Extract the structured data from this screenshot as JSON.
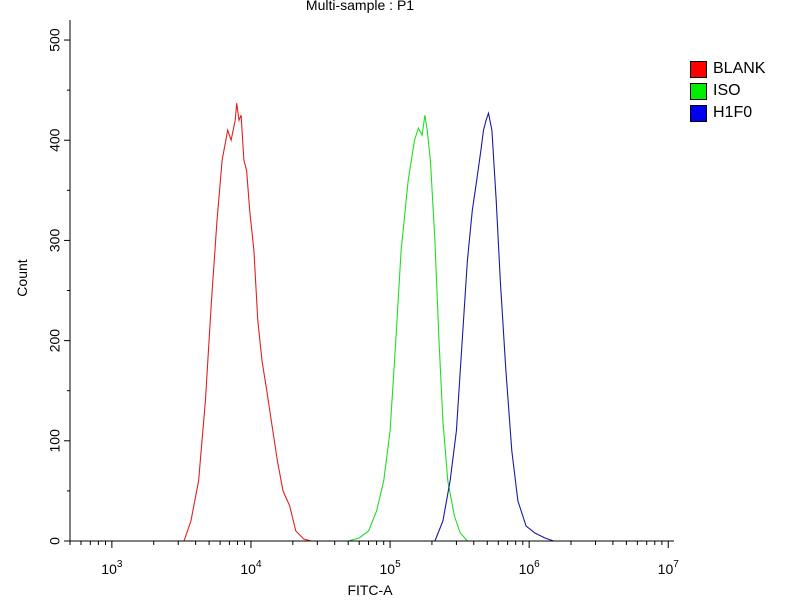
{
  "chart_data": {
    "type": "line",
    "title": "Multi-sample : P1",
    "xlabel": "FITC-A",
    "ylabel": "Count",
    "xscale": "log",
    "xlim": [
      500,
      11000000
    ],
    "ylim": [
      0,
      520
    ],
    "x_ticks": [
      {
        "base": "10",
        "exp": "3",
        "value": 1000
      },
      {
        "base": "10",
        "exp": "4",
        "value": 10000
      },
      {
        "base": "10",
        "exp": "5",
        "value": 100000
      },
      {
        "base": "10",
        "exp": "6",
        "value": 1000000
      },
      {
        "base": "10",
        "exp": "7",
        "value": 10000000
      }
    ],
    "y_ticks": [
      "0",
      "100",
      "200",
      "300",
      "400",
      "500"
    ],
    "legend_position": "top-right",
    "series": [
      {
        "name": "BLANK",
        "color": "#e02020",
        "points": [
          [
            3300,
            0
          ],
          [
            3700,
            20
          ],
          [
            4200,
            60
          ],
          [
            4700,
            140
          ],
          [
            5200,
            240
          ],
          [
            5700,
            320
          ],
          [
            6200,
            380
          ],
          [
            6800,
            410
          ],
          [
            7200,
            400
          ],
          [
            7700,
            420
          ],
          [
            7900,
            437
          ],
          [
            8200,
            420
          ],
          [
            8500,
            425
          ],
          [
            8900,
            380
          ],
          [
            9300,
            370
          ],
          [
            9800,
            330
          ],
          [
            10500,
            290
          ],
          [
            11200,
            220
          ],
          [
            12000,
            180
          ],
          [
            13000,
            150
          ],
          [
            14000,
            120
          ],
          [
            15500,
            80
          ],
          [
            17000,
            50
          ],
          [
            19000,
            35
          ],
          [
            21000,
            10
          ],
          [
            24000,
            2
          ],
          [
            27000,
            0
          ]
        ]
      },
      {
        "name": "ISO",
        "color": "#22dd22",
        "points": [
          [
            50000,
            0
          ],
          [
            60000,
            3
          ],
          [
            70000,
            10
          ],
          [
            80000,
            30
          ],
          [
            90000,
            60
          ],
          [
            100000,
            110
          ],
          [
            110000,
            200
          ],
          [
            120000,
            290
          ],
          [
            135000,
            360
          ],
          [
            150000,
            400
          ],
          [
            160000,
            412
          ],
          [
            170000,
            405
          ],
          [
            178000,
            425
          ],
          [
            185000,
            410
          ],
          [
            195000,
            380
          ],
          [
            210000,
            300
          ],
          [
            225000,
            200
          ],
          [
            240000,
            120
          ],
          [
            260000,
            60
          ],
          [
            290000,
            25
          ],
          [
            320000,
            8
          ],
          [
            360000,
            0
          ]
        ]
      },
      {
        "name": "H1F0",
        "color": "#1a1aa0",
        "points": [
          [
            210000,
            0
          ],
          [
            240000,
            20
          ],
          [
            270000,
            60
          ],
          [
            300000,
            110
          ],
          [
            330000,
            200
          ],
          [
            360000,
            280
          ],
          [
            390000,
            330
          ],
          [
            420000,
            360
          ],
          [
            450000,
            390
          ],
          [
            470000,
            410
          ],
          [
            490000,
            420
          ],
          [
            510000,
            427
          ],
          [
            540000,
            410
          ],
          [
            580000,
            340
          ],
          [
            620000,
            260
          ],
          [
            680000,
            170
          ],
          [
            750000,
            90
          ],
          [
            830000,
            40
          ],
          [
            950000,
            15
          ],
          [
            1100000,
            8
          ],
          [
            1300000,
            3
          ],
          [
            1500000,
            0
          ]
        ]
      }
    ]
  }
}
